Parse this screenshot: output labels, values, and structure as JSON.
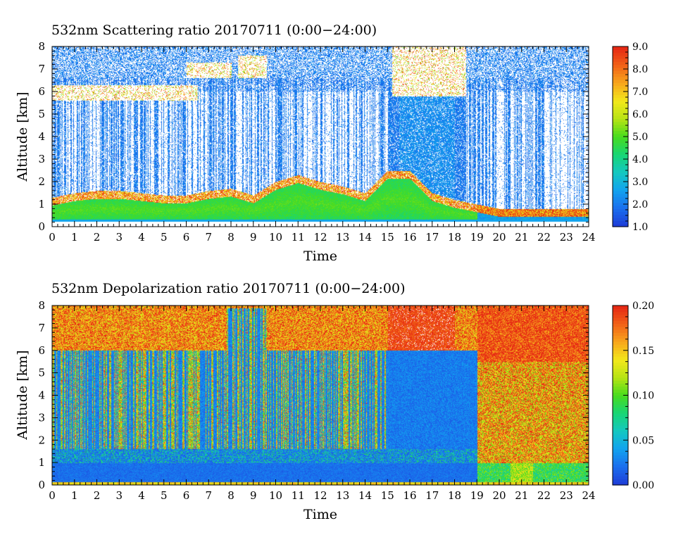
{
  "colors": {
    "colormap": [
      "#1e3fd8",
      "#1a70ee",
      "#12a4ee",
      "#14c8c0",
      "#18d674",
      "#48dc1e",
      "#b6e414",
      "#f2e81a",
      "#f8a81c",
      "#f26418",
      "#e62a14"
    ]
  },
  "chart_data": [
    {
      "type": "heatmap",
      "title": "532nm Scattering ratio  20170711 (0:00−24:00)",
      "xlabel": "Time",
      "ylabel": "Altitude [km]",
      "xlim": [
        0,
        24
      ],
      "ylim": [
        0,
        8
      ],
      "x_ticks": [
        "0",
        "1",
        "2",
        "3",
        "4",
        "5",
        "6",
        "7",
        "8",
        "9",
        "10",
        "11",
        "12",
        "13",
        "14",
        "15",
        "16",
        "17",
        "18",
        "19",
        "20",
        "21",
        "22",
        "23",
        "24"
      ],
      "y_ticks": [
        "0",
        "1",
        "2",
        "3",
        "4",
        "5",
        "6",
        "7",
        "8"
      ],
      "colorbar": {
        "min": 1.0,
        "max": 9.0,
        "ticks": [
          "1.0",
          "2.0",
          "3.0",
          "4.0",
          "5.0",
          "6.0",
          "7.0",
          "8.0",
          "9.0"
        ]
      },
      "features": {
        "boundary_layer_top_km": [
          1.3,
          1.5,
          1.6,
          1.6,
          1.5,
          1.4,
          1.4,
          1.6,
          1.7,
          1.4,
          2.0,
          2.3,
          2.0,
          1.8,
          1.5,
          2.5,
          2.5,
          1.5,
          1.2,
          1.0,
          0.8,
          0.8,
          0.8,
          0.8
        ],
        "cloud_layers": [
          {
            "time_start": 0.0,
            "time_end": 6.5,
            "base_km": 5.6,
            "top_km": 6.3
          },
          {
            "time_start": 6.0,
            "time_end": 8.0,
            "base_km": 6.6,
            "top_km": 7.3
          },
          {
            "time_start": 8.3,
            "time_end": 9.6,
            "base_km": 6.6,
            "top_km": 7.6
          },
          {
            "time_start": 15.2,
            "time_end": 18.5,
            "base_km": 5.8,
            "top_km": 8.0
          }
        ]
      }
    },
    {
      "type": "heatmap",
      "title": "532nm Depolarization ratio  20170711 (0:00−24:00)",
      "xlabel": "Time",
      "ylabel": "Altitude [km]",
      "xlim": [
        0,
        24
      ],
      "ylim": [
        0,
        8
      ],
      "x_ticks": [
        "0",
        "1",
        "2",
        "3",
        "4",
        "5",
        "6",
        "7",
        "8",
        "9",
        "10",
        "11",
        "12",
        "13",
        "14",
        "15",
        "16",
        "17",
        "18",
        "19",
        "20",
        "21",
        "22",
        "23",
        "24"
      ],
      "y_ticks": [
        "0",
        "1",
        "2",
        "3",
        "4",
        "5",
        "6",
        "7",
        "8"
      ],
      "colorbar": {
        "min": 0.0,
        "max": 0.2,
        "ticks": [
          "0.00",
          "0.05",
          "0.10",
          "0.15",
          "0.20"
        ]
      },
      "features": {
        "high_depol_layer_base_km": 6.0,
        "dust_onset_time": 19.0,
        "dust_top_km": 5.5,
        "low_depol_boundary_layer_top_km": 1.6
      }
    }
  ]
}
